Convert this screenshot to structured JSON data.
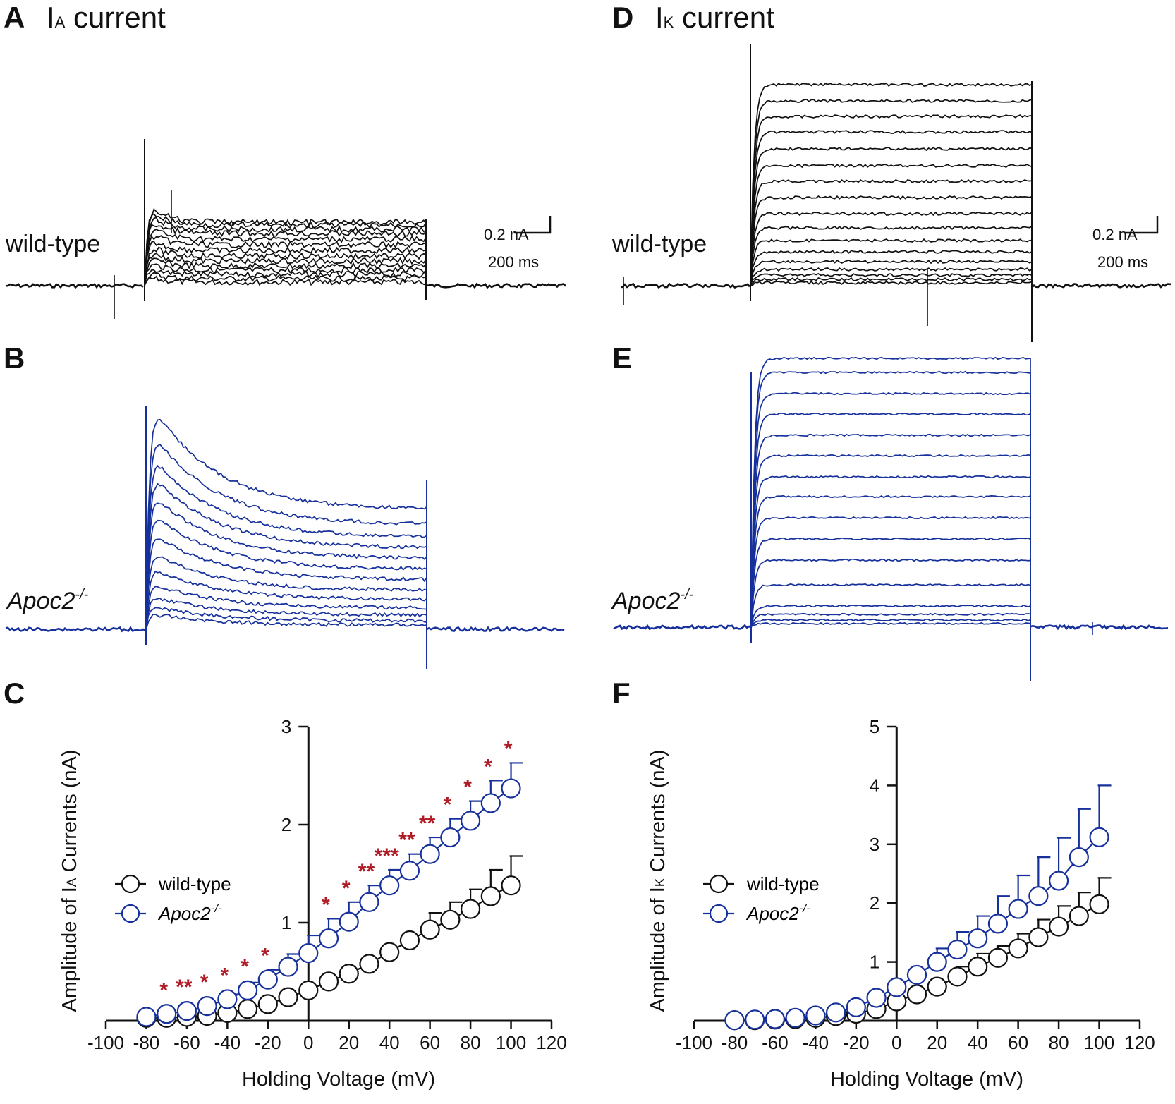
{
  "colors": {
    "wildtype": "#111111",
    "knockout": "#16309c",
    "sig": "#b01c25"
  },
  "panels": {
    "A": {
      "letter": "A",
      "title_main": "I",
      "title_sub": "A",
      "title_rest": " current",
      "condition": "wild-type",
      "scale_current": "0.2 nA",
      "scale_time": "200 ms"
    },
    "B": {
      "letter": "B",
      "condition_main": "Apoc2",
      "condition_sup": "-/-"
    },
    "D": {
      "letter": "D",
      "title_main": "I",
      "title_sub": "K",
      "title_rest": " current",
      "condition": "wild-type",
      "scale_current": "0.2 nA",
      "scale_time": "200 ms"
    },
    "E": {
      "letter": "E",
      "condition_main": "Apoc2",
      "condition_sup": "-/-"
    },
    "C": {
      "letter": "C"
    },
    "F": {
      "letter": "F"
    }
  },
  "chart_data": [
    {
      "id": "C",
      "type": "scatter",
      "ylabel_pre": "Amplitude of I",
      "ylabel_sub": "A",
      "ylabel_post": " Currents (nA)",
      "xlabel": "Holding Voltage (mV)",
      "xlim": [
        -100,
        120
      ],
      "ylim": [
        0,
        3
      ],
      "xticks": [
        "-100",
        "-80",
        "-60",
        "-40",
        "-20",
        "0",
        "20",
        "40",
        "60",
        "80",
        "100",
        "120"
      ],
      "yticks": [
        "1",
        "2",
        "3"
      ],
      "legend": {
        "wildtype": "wild-type",
        "knockout_main": "Apoc2",
        "knockout_sup": "-/-"
      },
      "x": [
        -80,
        -70,
        -60,
        -50,
        -40,
        -30,
        -20,
        -10,
        0,
        10,
        20,
        30,
        40,
        50,
        60,
        70,
        80,
        90,
        100
      ],
      "series": [
        {
          "name": "wild-type",
          "values": [
            0.03,
            0.03,
            0.04,
            0.05,
            0.08,
            0.12,
            0.17,
            0.24,
            0.31,
            0.4,
            0.48,
            0.58,
            0.7,
            0.82,
            0.93,
            1.03,
            1.14,
            1.27,
            1.38
          ],
          "err": [
            0,
            0,
            0,
            0,
            0,
            0,
            0,
            0,
            0,
            0,
            0,
            0,
            0,
            0,
            0.17,
            0.18,
            0.2,
            0.27,
            0.3
          ]
        },
        {
          "name": "Apoc2-/-",
          "values": [
            0.04,
            0.07,
            0.1,
            0.15,
            0.22,
            0.31,
            0.42,
            0.55,
            0.69,
            0.84,
            1.01,
            1.21,
            1.38,
            1.53,
            1.7,
            1.87,
            2.04,
            2.22,
            2.37
          ],
          "err": [
            0,
            0,
            0,
            0,
            0.05,
            0.08,
            0.1,
            0.13,
            0.18,
            0.2,
            0.2,
            0.17,
            0.16,
            0.17,
            0.17,
            0.19,
            0.2,
            0.23,
            0.26
          ]
        }
      ],
      "significance": [
        {
          "x": -70,
          "label": "*"
        },
        {
          "x": -60,
          "label": "**"
        },
        {
          "x": -50,
          "label": "*"
        },
        {
          "x": -40,
          "label": "*"
        },
        {
          "x": -30,
          "label": "*"
        },
        {
          "x": -20,
          "label": "*"
        },
        {
          "x": 10,
          "label": "*"
        },
        {
          "x": 20,
          "label": "*"
        },
        {
          "x": 30,
          "label": "**"
        },
        {
          "x": 40,
          "label": "***"
        },
        {
          "x": 50,
          "label": "**"
        },
        {
          "x": 60,
          "label": "**"
        },
        {
          "x": 70,
          "label": "*"
        },
        {
          "x": 80,
          "label": "*"
        },
        {
          "x": 90,
          "label": "*"
        },
        {
          "x": 100,
          "label": "*"
        }
      ]
    },
    {
      "id": "F",
      "type": "scatter",
      "ylabel_pre": "Amplitude of I",
      "ylabel_sub": "K",
      "ylabel_post": " Currents (nA)",
      "xlabel": "Holding Voltage (mV)",
      "xlim": [
        -100,
        120
      ],
      "ylim": [
        0,
        5
      ],
      "xticks": [
        "-100",
        "-80",
        "-60",
        "-40",
        "-20",
        "0",
        "20",
        "40",
        "60",
        "80",
        "100",
        "120"
      ],
      "yticks": [
        "1",
        "2",
        "3",
        "4",
        "5"
      ],
      "legend": {
        "wildtype": "wild-type",
        "knockout_main": "Apoc2",
        "knockout_sup": "-/-"
      },
      "x": [
        -80,
        -70,
        -60,
        -50,
        -40,
        -30,
        -20,
        -10,
        0,
        10,
        20,
        30,
        40,
        50,
        60,
        70,
        80,
        90,
        100
      ],
      "series": [
        {
          "name": "wild-type",
          "values": [
            0.01,
            0.01,
            0.02,
            0.03,
            0.05,
            0.08,
            0.12,
            0.2,
            0.33,
            0.45,
            0.58,
            0.75,
            0.92,
            1.07,
            1.23,
            1.42,
            1.6,
            1.78,
            1.98
          ],
          "err": [
            0,
            0,
            0,
            0,
            0,
            0,
            0,
            0,
            0,
            0,
            0,
            0.17,
            0.22,
            0.2,
            0.25,
            0.3,
            0.35,
            0.4,
            0.45
          ]
        },
        {
          "name": "Apoc2-/-",
          "values": [
            0.01,
            0.02,
            0.03,
            0.05,
            0.09,
            0.14,
            0.23,
            0.39,
            0.57,
            0.78,
            1.0,
            1.21,
            1.4,
            1.65,
            1.9,
            2.12,
            2.38,
            2.78,
            3.12
          ],
          "err": [
            0,
            0,
            0,
            0,
            0,
            0,
            0,
            0,
            0,
            0,
            0.23,
            0.3,
            0.38,
            0.47,
            0.57,
            0.66,
            0.73,
            0.82,
            0.88
          ]
        }
      ]
    }
  ]
}
